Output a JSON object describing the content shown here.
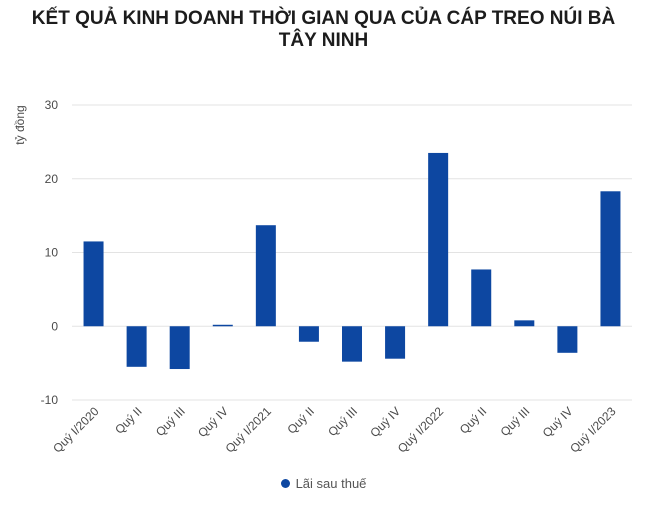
{
  "chart_data": {
    "type": "bar",
    "title_lines": [
      "KẾT QUẢ KINH DOANH THỜI GIAN QUA CỦA CÁP TREO NÚI BÀ",
      "TÂY NINH"
    ],
    "ylabel": "tỷ đồng",
    "ylim": [
      -10,
      30
    ],
    "yticks": [
      "30",
      "20",
      "10",
      "0",
      "-10"
    ],
    "categories": [
      "Quý I/2020",
      "Quý II",
      "Quý III",
      "Quý IV",
      "Quý I/2021",
      "Quý II",
      "Quý III",
      "Quý IV",
      "Quý I/2022",
      "Quý II",
      "Quý III",
      "Quý IV",
      "Quý I/2023"
    ],
    "series": [
      {
        "name": "Lãi sau thuế",
        "color": "#0d47a1",
        "values": [
          11.5,
          -5.5,
          -5.8,
          0.2,
          13.7,
          -2.1,
          -4.8,
          -4.4,
          23.5,
          7.7,
          0.8,
          -3.6,
          18.3
        ]
      }
    ],
    "grid": true,
    "legend_position": "bottom"
  }
}
